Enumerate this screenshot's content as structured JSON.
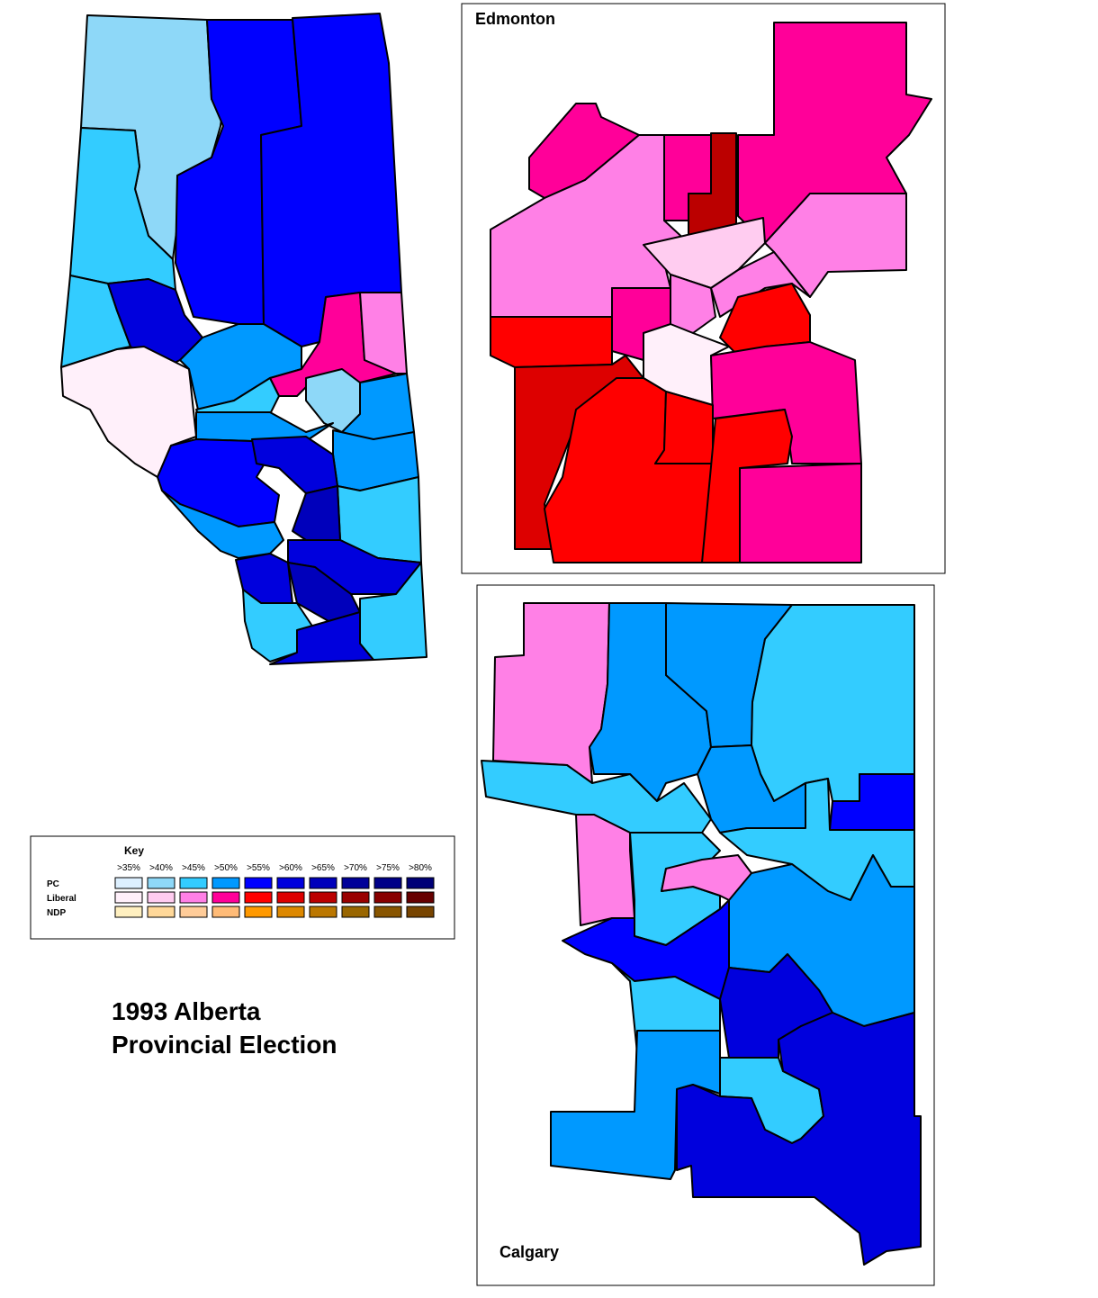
{
  "title": [
    "1993 Alberta",
    "Provincial Election"
  ],
  "insets": [
    {
      "label": "Edmonton"
    },
    {
      "label": "Calgary"
    }
  ],
  "legend": {
    "title": "Key",
    "thresholds": [
      ">35%",
      ">40%",
      ">45%",
      ">50%",
      ">55%",
      ">60%",
      ">65%",
      ">70%",
      ">75%",
      ">80%"
    ],
    "parties": [
      {
        "name": "PC",
        "colors": [
          "#ddf0ff",
          "#8ed8f8",
          "#33ccff",
          "#0099ff",
          "#0000ff",
          "#0000dd",
          "#0000bb",
          "#000099",
          "#000088",
          "#000077"
        ]
      },
      {
        "name": "Liberal",
        "colors": [
          "#fff0fa",
          "#ffccf0",
          "#ff80e6",
          "#ff0099",
          "#ff0000",
          "#dd0000",
          "#bb0000",
          "#990000",
          "#880000",
          "#660000"
        ]
      },
      {
        "name": "NDP",
        "colors": [
          "#fff0c0",
          "#ffd899",
          "#ffcc99",
          "#ffbb77",
          "#ff9900",
          "#dd8800",
          "#bb7700",
          "#996600",
          "#885500",
          "#774400"
        ]
      }
    ]
  }
}
